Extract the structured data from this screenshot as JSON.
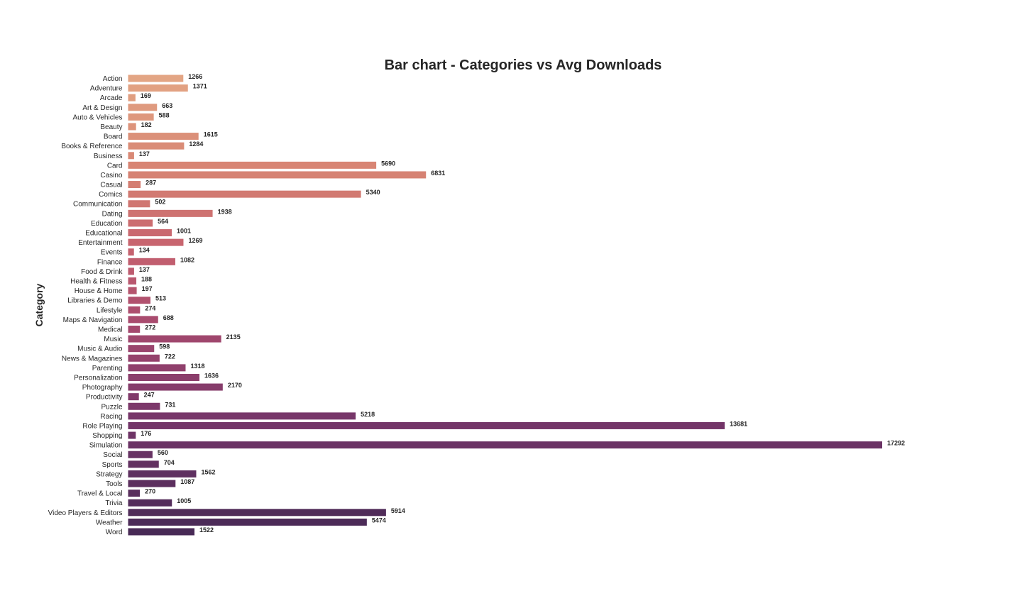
{
  "chart_data": {
    "type": "bar",
    "orientation": "horizontal",
    "title": "Bar chart - Categories vs Avg Downloads",
    "xlabel": "",
    "ylabel": "Category",
    "xlim": [
      0,
      18000
    ],
    "grid": false,
    "legend": "none",
    "palette": {
      "start": "#e3a584",
      "end": "#482a56"
    },
    "categories": [
      "Action",
      "Adventure",
      "Arcade",
      "Art & Design",
      "Auto & Vehicles",
      "Beauty",
      "Board",
      "Books & Reference",
      "Business",
      "Card",
      "Casino",
      "Casual",
      "Comics",
      "Communication",
      "Dating",
      "Education",
      "Educational",
      "Entertainment",
      "Events",
      "Finance",
      "Food & Drink",
      "Health & Fitness",
      "House & Home",
      "Libraries & Demo",
      "Lifestyle",
      "Maps & Navigation",
      "Medical",
      "Music",
      "Music & Audio",
      "News & Magazines",
      "Parenting",
      "Personalization",
      "Photography",
      "Productivity",
      "Puzzle",
      "Racing",
      "Role Playing",
      "Shopping",
      "Simulation",
      "Social",
      "Sports",
      "Strategy",
      "Tools",
      "Travel & Local",
      "Trivia",
      "Video Players & Editors",
      "Weather",
      "Word"
    ],
    "values": [
      1266,
      1371,
      169,
      663,
      588,
      182,
      1615,
      1284,
      137,
      5690,
      6831,
      287,
      5340,
      502,
      1938,
      564,
      1001,
      1269,
      134,
      1082,
      137,
      188,
      197,
      513,
      274,
      688,
      272,
      2135,
      598,
      722,
      1318,
      1636,
      2170,
      247,
      731,
      5218,
      13681,
      176,
      17292,
      560,
      704,
      1562,
      1087,
      270,
      1005,
      5914,
      5474,
      1522
    ]
  }
}
